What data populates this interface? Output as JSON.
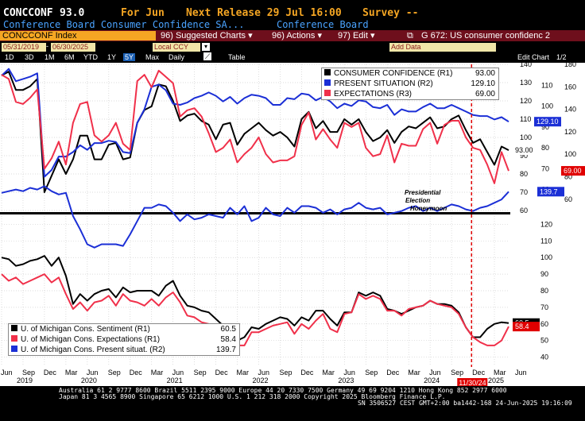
{
  "header": {
    "ticker": "CONCCONF",
    "value": "93.0",
    "for_label": "For Jun",
    "next_release": "Next Release 29 Jul 16:00",
    "survey": "Survey --",
    "subtitle_left": "Conference Board Consumer Confidence SA...",
    "subtitle_right": "Conference Board"
  },
  "toolbar": {
    "index_field": "CONCCONF Index",
    "suggested": "96) Suggested Charts ▾",
    "actions": "96) Actions ▾",
    "edit": "97) Edit ▾",
    "chart_title": "G 672: US consumer confidenc 2"
  },
  "range": {
    "start": "05/31/2019",
    "end": "06/30/2025",
    "currency": "Local CCY",
    "add_data": "Add Data",
    "edit_chart": "Edit Chart",
    "page": "1/2"
  },
  "periods": [
    "1D",
    "3D",
    "1M",
    "6M",
    "YTD",
    "1Y",
    "5Y",
    "Max",
    "Daily",
    "Table"
  ],
  "colors": {
    "black": "#000000",
    "blue": "#1b2fd6",
    "red": "#f0304a",
    "marker": "#e00000"
  },
  "chart_data": [
    {
      "type": "line",
      "axes": {
        "r1": [
          60,
          140
        ],
        "r2": [
          50,
          180
        ],
        "r3": [
          50,
          120
        ]
      },
      "right_axis_ticks": {
        "r1": [
          60,
          70,
          80,
          90,
          100,
          110,
          120,
          130,
          140
        ],
        "r2": [
          60,
          80,
          100,
          120,
          140,
          160,
          180
        ],
        "r3": [
          60,
          70,
          80,
          90,
          100,
          110
        ]
      },
      "series": [
        {
          "name": "CONSUMER CONFIDENCE (R1)",
          "last_label": "93.00",
          "axis": "r1",
          "color": "black",
          "values": [
            134,
            136,
            126,
            126,
            128,
            132,
            70,
            79,
            88,
            80,
            88,
            101,
            101,
            88,
            88,
            96,
            97,
            88,
            89,
            108,
            115,
            117,
            129,
            128,
            120,
            109,
            112,
            113,
            109,
            107,
            99,
            107,
            108,
            96,
            102,
            105,
            108,
            104,
            101,
            103,
            100,
            95,
            110,
            114,
            105,
            109,
            103,
            103,
            110,
            107,
            110,
            103,
            98,
            100,
            104,
            97,
            103,
            106,
            105,
            108,
            111,
            105,
            106,
            110,
            112,
            104,
            97,
            99,
            92,
            85,
            95,
            93
          ]
        },
        {
          "name": "PRESENT SITUATION (R2)",
          "last_label": "129.10",
          "axis": "r2",
          "color": "blue",
          "values": [
            170,
            176,
            165,
            167,
            169,
            172,
            80,
            86,
            98,
            98,
            102,
            108,
            104,
            110,
            110,
            112,
            111,
            102,
            101,
            128,
            140,
            160,
            162,
            157,
            145,
            144,
            146,
            150,
            152,
            155,
            152,
            147,
            151,
            145,
            150,
            153,
            152,
            150,
            144,
            144,
            150,
            149,
            154,
            153,
            148,
            151,
            147,
            141,
            145,
            143,
            148,
            147,
            142,
            141,
            144,
            135,
            140,
            138,
            138,
            142,
            145,
            141,
            141,
            144,
            141,
            138,
            135,
            134,
            134,
            131,
            133,
            129
          ]
        },
        {
          "name": "EXPECTATIONS (R3)",
          "last_label": "69.00",
          "axis": "r3",
          "color": "red",
          "values": [
            115,
            113,
            102,
            101,
            104,
            108,
            70,
            75,
            83,
            72,
            92,
            101,
            102,
            86,
            83,
            86,
            92,
            82,
            79,
            112,
            115,
            109,
            117,
            114,
            111,
            95,
            98,
            99,
            95,
            87,
            78,
            80,
            84,
            73,
            77,
            80,
            85,
            77,
            73,
            74,
            74,
            76,
            91,
            97,
            84,
            89,
            84,
            80,
            92,
            90,
            92,
            80,
            76,
            77,
            86,
            73,
            82,
            81,
            81,
            89,
            92,
            82,
            91,
            93,
            93,
            85,
            80,
            79,
            72,
            63,
            78,
            69
          ]
        }
      ],
      "legend": "top-right",
      "annotation": "Presidential Election Honeymoon",
      "grid": true
    },
    {
      "type": "line",
      "axes": {
        "r1": [
          35,
          125
        ],
        "r2": [
          35,
          125
        ]
      },
      "right_axis_ticks": {
        "r1": [
          40,
          50,
          60,
          70,
          80,
          90,
          100,
          110,
          120
        ]
      },
      "series": [
        {
          "name": "U. of Michigan Cons. Sentiment (R1)",
          "last_label": "60.5",
          "axis": "r1",
          "color": "black",
          "values": [
            100,
            99,
            95,
            96,
            98,
            99,
            101,
            95,
            100,
            89,
            72,
            78,
            74,
            78,
            80,
            81,
            76,
            82,
            79,
            80,
            80,
            80,
            77,
            83,
            86,
            77,
            71,
            70,
            68,
            67,
            63,
            59,
            59,
            50,
            52,
            58,
            57,
            60,
            62,
            64,
            63,
            59,
            64,
            62,
            68,
            68,
            63,
            59,
            67,
            67,
            79,
            77,
            79,
            77,
            69,
            68,
            66,
            68,
            70,
            71,
            74,
            72,
            72,
            71,
            67,
            58,
            52,
            52,
            57,
            60,
            61,
            60.5
          ]
        },
        {
          "name": "U. of Michigan Cons. Expectations (R1)",
          "last_label": "58.4",
          "axis": "r1",
          "color": "red",
          "values": [
            90,
            86,
            88,
            84,
            86,
            88,
            90,
            85,
            88,
            78,
            69,
            73,
            68,
            73,
            74,
            77,
            71,
            78,
            74,
            73,
            71,
            75,
            71,
            76,
            79,
            73,
            65,
            64,
            61,
            60,
            57,
            53,
            53,
            47,
            47,
            55,
            55,
            57,
            59,
            60,
            61,
            54,
            60,
            57,
            62,
            66,
            57,
            55,
            66,
            67,
            78,
            75,
            77,
            75,
            68,
            68,
            65,
            69,
            70,
            71,
            74,
            72,
            71,
            70,
            66,
            58,
            52,
            49,
            47,
            47,
            50,
            58.4
          ]
        },
        {
          "name": "U. of Michigan Cons. Present situat. (R2)",
          "last_label": "139.7",
          "axis": "r2",
          "color": "blue",
          "values": [
            139,
            140,
            141,
            140,
            142,
            141,
            143,
            140,
            138,
            139,
            125,
            117,
            108,
            106,
            108,
            108,
            108,
            107,
            114,
            122,
            130,
            130,
            132,
            131,
            127,
            122,
            126,
            123,
            124,
            126,
            125,
            124,
            130,
            126,
            131,
            122,
            124,
            130,
            126,
            125,
            130,
            127,
            131,
            131,
            130,
            127,
            129,
            126,
            129,
            130,
            133,
            130,
            129,
            130,
            126,
            127,
            128,
            130,
            131,
            128,
            130,
            128,
            130,
            132,
            131,
            129,
            128,
            130,
            131,
            133,
            135,
            139.7
          ]
        }
      ],
      "legend": "bottom-left",
      "grid": true
    }
  ],
  "x_axis": {
    "months": [
      "Jun",
      "Sep",
      "Dec",
      "Mar",
      "Jun",
      "Sep",
      "Dec",
      "Mar",
      "Jun",
      "Sep",
      "Dec",
      "Mar",
      "Jun",
      "Sep",
      "Dec",
      "Mar",
      "Jun",
      "Sep",
      "Dec",
      "Mar",
      "Jun",
      "Sep",
      "Dec",
      "Mar",
      "Jun"
    ],
    "years": [
      "2019",
      "2020",
      "2021",
      "2022",
      "2023",
      "2024",
      "2025"
    ],
    "marker_label": "11/30/24"
  },
  "footer": {
    "line1": "Australia 61 2 9777 8600 Brazil 5511 2395 9000 Europe 44 20 7330 7500 Germany 49 69 9204 1210 Hong Kong 852 2977 6000",
    "line2": "Japan 81 3 4565 8900         Singapore 65 6212 1000         U.S. 1 212 318 2000         Copyright 2025 Bloomberg Finance L.P.",
    "line3": "SN 3506527 CEST GMT+2:00 ba1442-168 24-Jun-2025 19:16:09"
  }
}
